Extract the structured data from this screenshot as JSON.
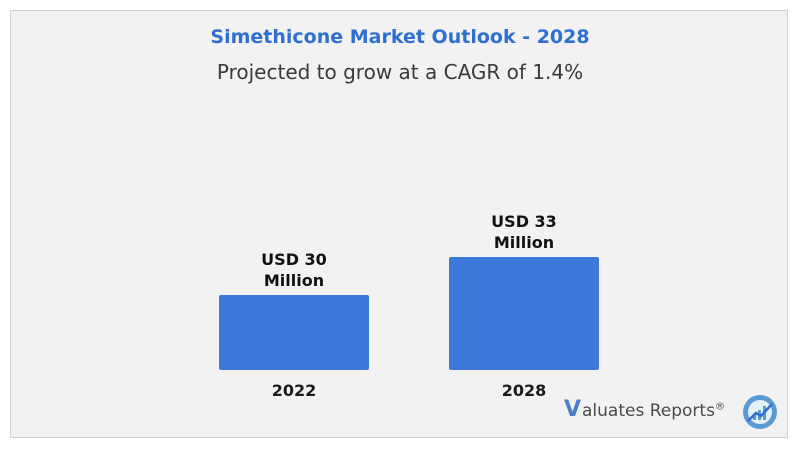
{
  "chart_data": {
    "type": "bar",
    "title": "Simethicone Market Outlook - 2028",
    "subtitle": "Projected to grow at a CAGR of 1.4%",
    "categories": [
      "2022",
      "2028"
    ],
    "values": [
      30,
      33
    ],
    "data_labels": [
      [
        "USD 30",
        "Million"
      ],
      [
        "USD 33",
        "Million"
      ]
    ],
    "unit": "USD Million",
    "xlabel": "",
    "ylabel": "",
    "grid": false,
    "legend": "none",
    "colors": {
      "bar": "#3c78d8"
    }
  },
  "branding": {
    "logo_letter": "V",
    "logo_text": "aluates Reports",
    "logo_mark": "®",
    "logo_icon": "rising-chart-circle-icon",
    "logo_color": "#4a7ec9"
  }
}
